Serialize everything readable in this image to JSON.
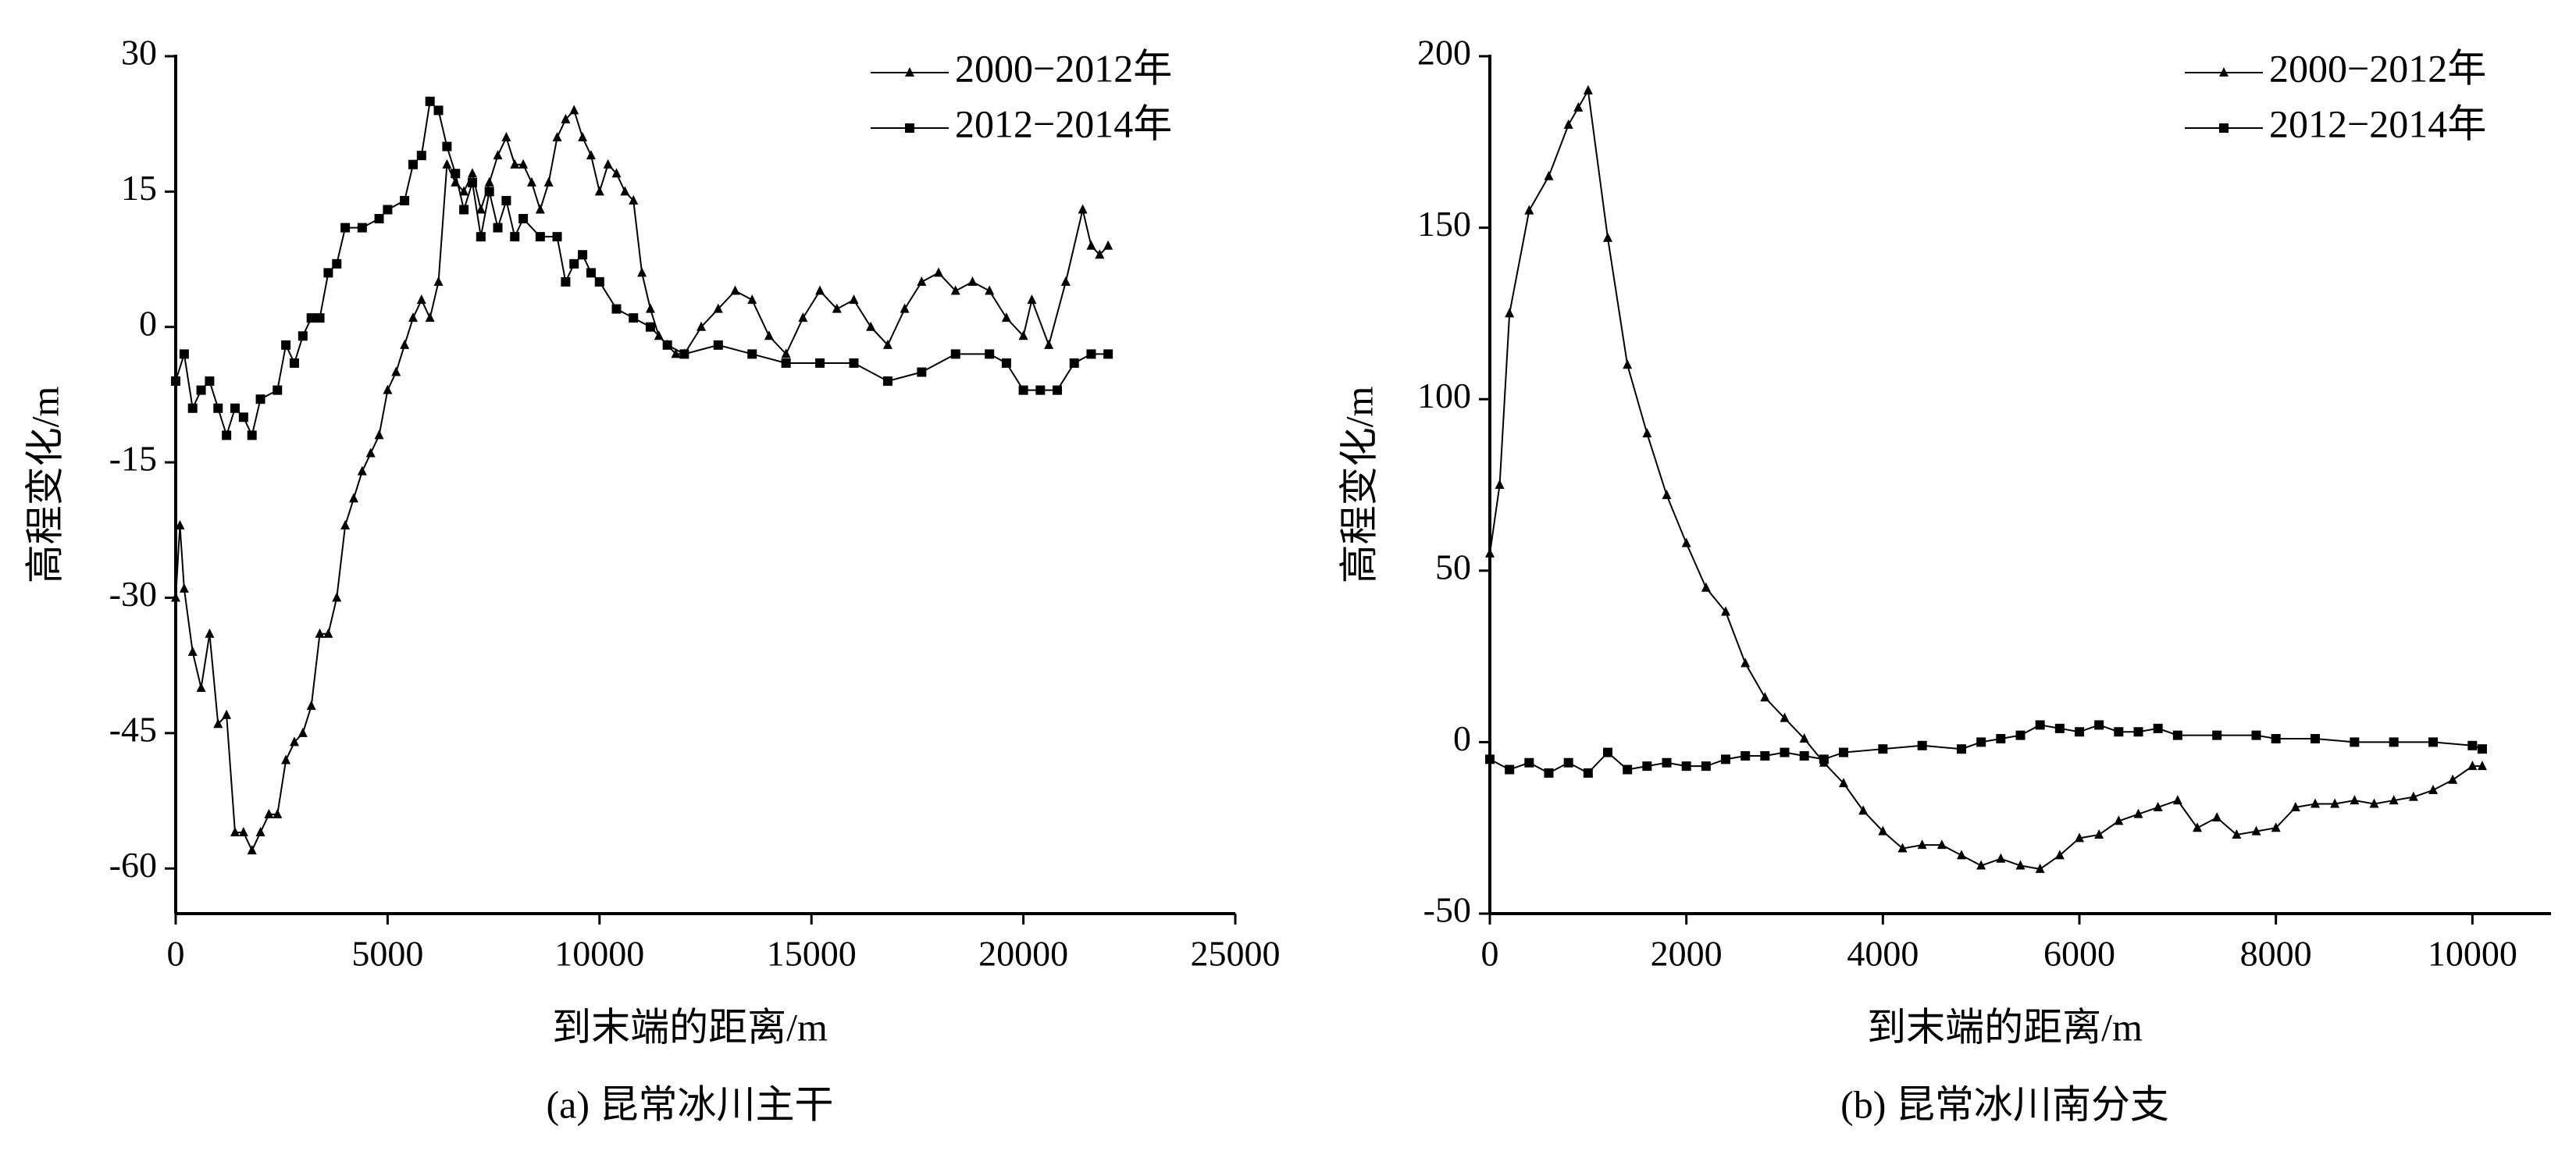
{
  "chart_data": [
    {
      "type": "line",
      "caption": "(a) 昆常冰川主干",
      "xlabel": "到末端的距离/m",
      "ylabel": "高程变化/m",
      "xlim": [
        0,
        25000
      ],
      "xticks": [
        0,
        5000,
        10000,
        15000,
        20000,
        25000
      ],
      "ylim": [
        -65,
        30
      ],
      "yticks": [
        -60,
        -45,
        -30,
        -15,
        0,
        15,
        30
      ],
      "legend": "upper right",
      "series": [
        {
          "name": "2000−2012年",
          "color": "#000000",
          "marker": "triangle",
          "x": [
            0,
            100,
            200,
            400,
            600,
            800,
            1000,
            1200,
            1400,
            1600,
            1800,
            2000,
            2200,
            2400,
            2600,
            2800,
            3000,
            3200,
            3400,
            3600,
            3800,
            4000,
            4200,
            4400,
            4600,
            4800,
            5000,
            5200,
            5400,
            5600,
            5800,
            6000,
            6200,
            6400,
            6600,
            6800,
            7000,
            7200,
            7400,
            7600,
            7800,
            8000,
            8200,
            8400,
            8600,
            8800,
            9000,
            9200,
            9400,
            9600,
            9800,
            10000,
            10200,
            10400,
            10600,
            10800,
            11000,
            11200,
            11400,
            11600,
            11800,
            12000,
            12400,
            12800,
            13200,
            13600,
            14000,
            14400,
            14800,
            15200,
            15600,
            16000,
            16400,
            16800,
            17200,
            17600,
            18000,
            18400,
            18800,
            19200,
            19600,
            20000,
            20200,
            20600,
            21000,
            21400,
            21600,
            21800,
            22000
          ],
          "values": [
            -30,
            -22,
            -29,
            -36,
            -40,
            -34,
            -44,
            -43,
            -56,
            -56,
            -58,
            -56,
            -54,
            -54,
            -48,
            -46,
            -45,
            -42,
            -34,
            -34,
            -30,
            -22,
            -19,
            -16,
            -14,
            -12,
            -7,
            -5,
            -2,
            1,
            3,
            1,
            5,
            18,
            16,
            15,
            17,
            13,
            16,
            19,
            21,
            18,
            18,
            16,
            13,
            16,
            21,
            23,
            24,
            21,
            19,
            15,
            18,
            17,
            15,
            14,
            6,
            2,
            -1,
            -2,
            -3,
            -3,
            0,
            2,
            4,
            3,
            -1,
            -3,
            1,
            4,
            2,
            3,
            0,
            -2,
            2,
            5,
            6,
            4,
            5,
            4,
            1,
            -1,
            3,
            -2,
            5,
            13,
            9,
            8,
            9
          ]
        },
        {
          "name": "2012−2014年",
          "color": "#000000",
          "marker": "square",
          "x": [
            0,
            200,
            400,
            600,
            800,
            1000,
            1200,
            1400,
            1600,
            1800,
            2000,
            2400,
            2600,
            2800,
            3000,
            3200,
            3400,
            3600,
            3800,
            4000,
            4400,
            4800,
            5000,
            5400,
            5600,
            5800,
            6000,
            6200,
            6400,
            6600,
            6800,
            7000,
            7200,
            7400,
            7600,
            7800,
            8000,
            8200,
            8600,
            9000,
            9200,
            9400,
            9600,
            9800,
            10000,
            10400,
            10800,
            11200,
            11600,
            12000,
            12800,
            13600,
            14400,
            15200,
            16000,
            16800,
            17600,
            18400,
            19200,
            19600,
            20000,
            20400,
            20800,
            21200,
            21600,
            22000
          ],
          "values": [
            -6,
            -3,
            -9,
            -7,
            -6,
            -9,
            -12,
            -9,
            -10,
            -12,
            -8,
            -7,
            -2,
            -4,
            -1,
            1,
            1,
            6,
            7,
            11,
            11,
            12,
            13,
            14,
            18,
            19,
            25,
            24,
            20,
            17,
            13,
            16,
            10,
            15,
            11,
            14,
            10,
            12,
            10,
            10,
            5,
            7,
            8,
            6,
            5,
            2,
            1,
            0,
            -2,
            -3,
            -2,
            -3,
            -4,
            -4,
            -4,
            -6,
            -5,
            -3,
            -3,
            -4,
            -7,
            -7,
            -7,
            -4,
            -3,
            -3
          ]
        }
      ]
    },
    {
      "type": "line",
      "caption": "(b) 昆常冰川南分支",
      "xlabel": "到末端的距离/m",
      "ylabel": "高程变化/m",
      "xlim": [
        0,
        10800
      ],
      "xticks": [
        0,
        2000,
        4000,
        6000,
        8000,
        10000
      ],
      "ylim": [
        -50,
        200
      ],
      "yticks": [
        -50,
        0,
        50,
        100,
        150,
        200
      ],
      "legend": "upper right",
      "series": [
        {
          "name": "2000−2012年",
          "color": "#000000",
          "marker": "triangle",
          "x": [
            0,
            100,
            200,
            400,
            600,
            800,
            900,
            1000,
            1200,
            1400,
            1600,
            1800,
            2000,
            2200,
            2400,
            2600,
            2800,
            3000,
            3200,
            3400,
            3600,
            3800,
            4000,
            4200,
            4400,
            4600,
            4800,
            5000,
            5200,
            5400,
            5600,
            5800,
            6000,
            6200,
            6400,
            6600,
            6800,
            7000,
            7200,
            7400,
            7600,
            7800,
            8000,
            8200,
            8400,
            8600,
            8800,
            9000,
            9200,
            9400,
            9600,
            9800,
            10000,
            10100
          ],
          "values": [
            55,
            75,
            125,
            155,
            165,
            180,
            185,
            190,
            147,
            110,
            90,
            72,
            58,
            45,
            38,
            23,
            13,
            7,
            1,
            -6,
            -12,
            -20,
            -26,
            -31,
            -30,
            -30,
            -33,
            -36,
            -34,
            -36,
            -37,
            -33,
            -28,
            -27,
            -23,
            -21,
            -19,
            -17,
            -25,
            -22,
            -27,
            -26,
            -25,
            -19,
            -18,
            -18,
            -17,
            -18,
            -17,
            -16,
            -14,
            -11,
            -7,
            -7
          ]
        },
        {
          "name": "2012−2014年",
          "color": "#000000",
          "marker": "square",
          "x": [
            0,
            200,
            400,
            600,
            800,
            1000,
            1200,
            1400,
            1600,
            1800,
            2000,
            2200,
            2400,
            2600,
            2800,
            3000,
            3200,
            3400,
            3600,
            4000,
            4400,
            4800,
            5000,
            5200,
            5400,
            5600,
            5800,
            6000,
            6200,
            6400,
            6600,
            6800,
            7000,
            7400,
            7800,
            8000,
            8400,
            8800,
            9200,
            9600,
            10000,
            10100
          ],
          "values": [
            -5,
            -8,
            -6,
            -9,
            -6,
            -9,
            -3,
            -8,
            -7,
            -6,
            -7,
            -7,
            -5,
            -4,
            -4,
            -3,
            -4,
            -5,
            -3,
            -2,
            -1,
            -2,
            0,
            1,
            2,
            5,
            4,
            3,
            5,
            3,
            3,
            4,
            2,
            2,
            2,
            1,
            1,
            0,
            0,
            0,
            -1,
            -2
          ]
        }
      ]
    }
  ]
}
